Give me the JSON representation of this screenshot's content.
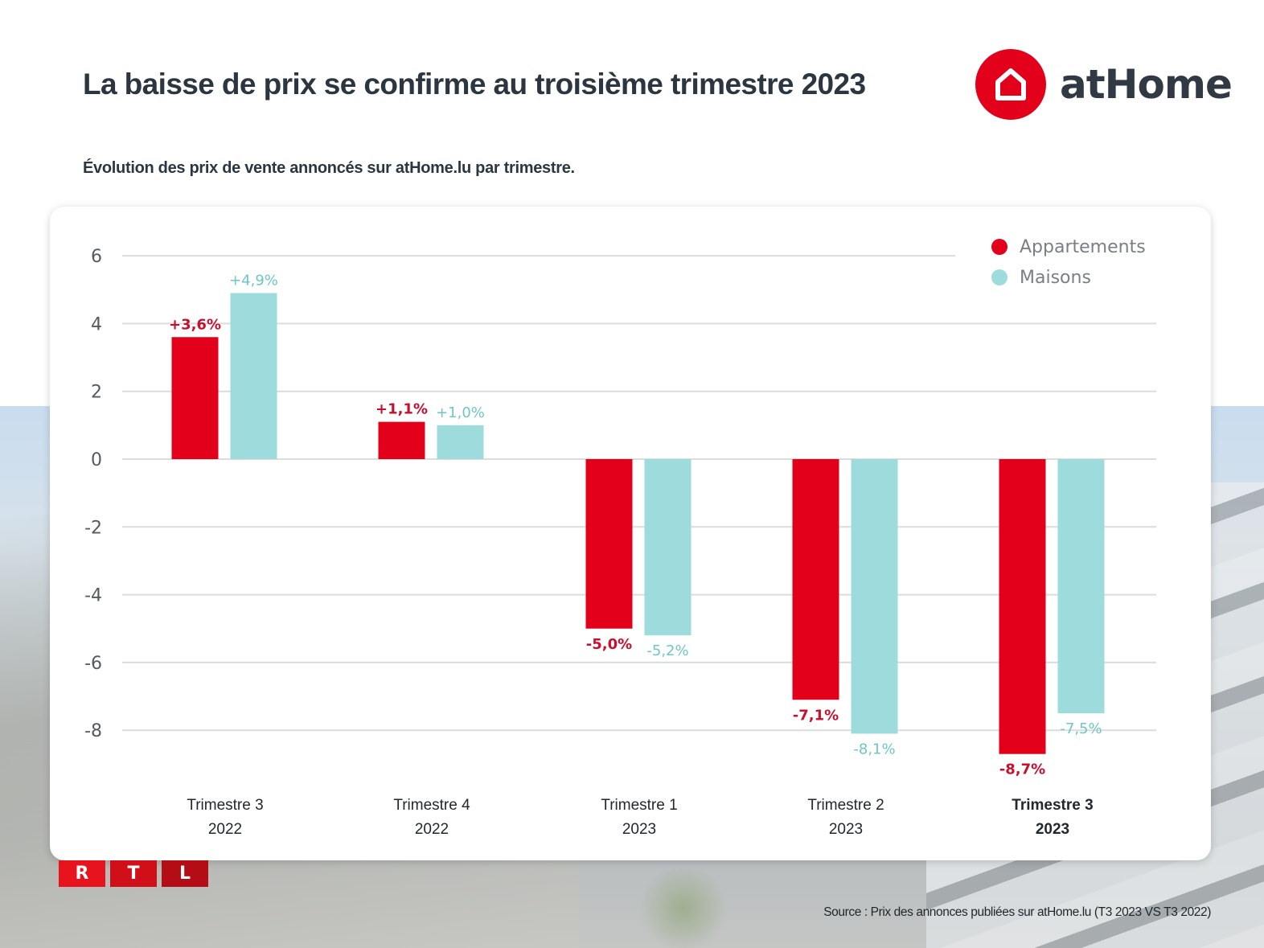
{
  "header": {
    "title": "La baisse de prix se confirme au troisième trimestre 2023",
    "subtitle": "Évolution des prix de vente annoncés sur atHome.lu par trimestre.",
    "logo_text": "atHome",
    "logo_icon": "house-icon"
  },
  "footer": {
    "rtl_letters": [
      "R",
      "T",
      "L"
    ],
    "source": "Source : Prix des annonces publiées sur atHome.lu (T3 2023 VS T3 2022)"
  },
  "colors": {
    "appartements": "#e2001a",
    "maisons": "#9ddbdc",
    "appartements_label": "#c8102e",
    "maisons_label": "#6fc6c6",
    "brand_red": "#e2001a",
    "rtl_red_1": "#e8141d",
    "rtl_red_2": "#d10f19",
    "rtl_red_3": "#b50d16"
  },
  "chart_data": {
    "type": "bar",
    "title": "La baisse de prix se confirme au troisième trimestre 2023",
    "subtitle": "Évolution des prix de vente annoncés sur atHome.lu par trimestre.",
    "xlabel": "",
    "ylabel": "",
    "ylim": [
      -9,
      6
    ],
    "yticks": [
      6,
      4,
      2,
      0,
      -2,
      -4,
      -6,
      -8
    ],
    "grid": true,
    "legend_position": "top-right",
    "categories": [
      {
        "line1": "Trimestre 3",
        "line2": "2022",
        "bold": false
      },
      {
        "line1": "Trimestre 4",
        "line2": "2022",
        "bold": false
      },
      {
        "line1": "Trimestre 1",
        "line2": "2023",
        "bold": false
      },
      {
        "line1": "Trimestre 2",
        "line2": "2023",
        "bold": false
      },
      {
        "line1": "Trimestre 3",
        "line2": "2023",
        "bold": true
      }
    ],
    "series": [
      {
        "name": "Appartements",
        "values": [
          3.6,
          1.1,
          -5.0,
          -7.1,
          -8.7
        ],
        "labels": [
          "+3,6%",
          "+1,1%",
          "-5,0%",
          "-7,1%",
          "-8,7%"
        ]
      },
      {
        "name": "Maisons",
        "values": [
          4.9,
          1.0,
          -5.2,
          -8.1,
          -7.5
        ],
        "labels": [
          "+4,9%",
          "+1,0%",
          "-5,2%",
          "-8,1%",
          "-7,5%"
        ]
      }
    ]
  }
}
